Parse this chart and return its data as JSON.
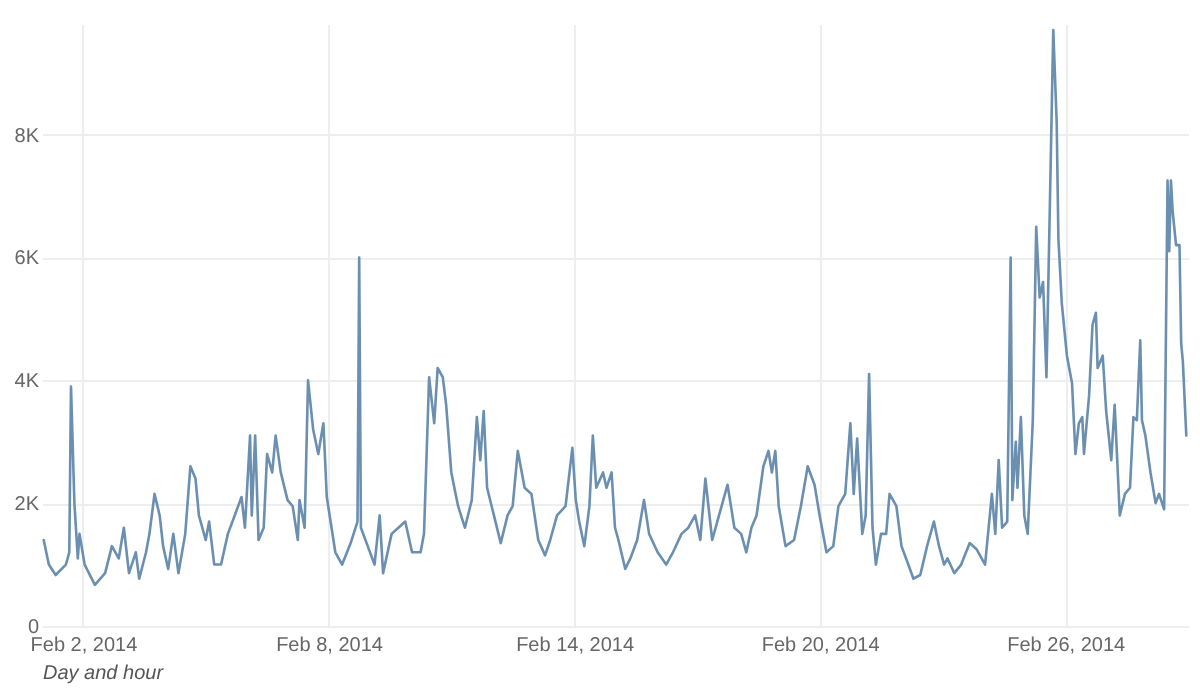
{
  "chart_data": {
    "type": "line",
    "xlabel": "Day and hour",
    "xlim": [
      "2014-02-01",
      "2014-03-01"
    ],
    "xticks": [
      {
        "value": "2014-02-02",
        "label": "Feb 2, 2014"
      },
      {
        "value": "2014-02-08",
        "label": "Feb 8, 2014"
      },
      {
        "value": "2014-02-14",
        "label": "Feb 14, 2014"
      },
      {
        "value": "2014-02-20",
        "label": "Feb 20, 2014"
      },
      {
        "value": "2014-02-26",
        "label": "Feb 26, 2014"
      }
    ],
    "ylim": [
      0,
      9800
    ],
    "yticks": [
      0,
      {
        "value": 2000,
        "label": "2K"
      },
      {
        "value": 4000,
        "label": "4K"
      },
      {
        "value": 6000,
        "label": "6K"
      },
      {
        "value": 8000,
        "label": "8K"
      }
    ],
    "grid": true,
    "marker": "none",
    "line_style": "solid",
    "x": [
      "2014-02-01T01:00",
      "2014-02-01T04:00",
      "2014-02-01T08:00",
      "2014-02-01T14:00",
      "2014-02-01T16:00",
      "2014-02-01T17:00",
      "2014-02-01T19:00",
      "2014-02-01T21:00",
      "2014-02-01T22:00",
      "2014-02-02T01:00",
      "2014-02-02T07:00",
      "2014-02-02T13:00",
      "2014-02-02T17:00",
      "2014-02-02T21:00",
      "2014-02-03T00:00",
      "2014-02-03T03:00",
      "2014-02-03T07:00",
      "2014-02-03T09:00",
      "2014-02-03T13:00",
      "2014-02-03T15:00",
      "2014-02-03T18:00",
      "2014-02-03T21:00",
      "2014-02-03T23:00",
      "2014-02-04T02:00",
      "2014-02-04T05:00",
      "2014-02-04T08:00",
      "2014-02-04T12:00",
      "2014-02-04T15:00",
      "2014-02-04T18:00",
      "2014-02-04T20:00",
      "2014-02-05T00:00",
      "2014-02-05T02:00",
      "2014-02-05T05:00",
      "2014-02-05T09:00",
      "2014-02-05T13:00",
      "2014-02-05T17:00",
      "2014-02-05T21:00",
      "2014-02-05T23:00",
      "2014-02-06T02:00",
      "2014-02-06T03:00",
      "2014-02-06T05:00",
      "2014-02-06T07:00",
      "2014-02-06T10:00",
      "2014-02-06T12:00",
      "2014-02-06T15:00",
      "2014-02-06T17:00",
      "2014-02-06T20:00",
      "2014-02-07T00:00",
      "2014-02-07T03:00",
      "2014-02-07T06:00",
      "2014-02-07T07:00",
      "2014-02-07T10:00",
      "2014-02-07T12:00",
      "2014-02-07T15:00",
      "2014-02-07T18:00",
      "2014-02-07T21:00",
      "2014-02-07T23:00",
      "2014-02-08T04:00",
      "2014-02-08T08:00",
      "2014-02-08T13:00",
      "2014-02-08T17:00",
      "2014-02-08T18:00",
      "2014-02-08T19:00",
      "2014-02-08T23:00",
      "2014-02-09T03:00",
      "2014-02-09T06:00",
      "2014-02-09T08:00",
      "2014-02-09T13:00",
      "2014-02-09T17:00",
      "2014-02-09T21:00",
      "2014-02-10T01:00",
      "2014-02-10T06:00",
      "2014-02-10T08:00",
      "2014-02-10T11:00",
      "2014-02-10T14:00",
      "2014-02-10T16:00",
      "2014-02-10T19:00",
      "2014-02-10T21:00",
      "2014-02-11T00:00",
      "2014-02-11T04:00",
      "2014-02-11T08:00",
      "2014-02-11T12:00",
      "2014-02-11T15:00",
      "2014-02-11T17:00",
      "2014-02-11T19:00",
      "2014-02-11T21:00",
      "2014-02-12T01:00",
      "2014-02-12T05:00",
      "2014-02-12T09:00",
      "2014-02-12T12:00",
      "2014-02-12T15:00",
      "2014-02-12T19:00",
      "2014-02-12T23:00",
      "2014-02-13T03:00",
      "2014-02-13T07:00",
      "2014-02-13T10:00",
      "2014-02-13T14:00",
      "2014-02-13T19:00",
      "2014-02-13T23:00",
      "2014-02-14T01:00",
      "2014-02-14T03:00",
      "2014-02-14T06:00",
      "2014-02-14T09:00",
      "2014-02-14T11:00",
      "2014-02-14T13:00",
      "2014-02-14T17:00",
      "2014-02-14T19:00",
      "2014-02-14T22:00",
      "2014-02-15T00:00",
      "2014-02-15T02:00",
      "2014-02-15T06:00",
      "2014-02-15T09:00",
      "2014-02-15T13:00",
      "2014-02-15T17:00",
      "2014-02-15T20:00",
      "2014-02-16T01:00",
      "2014-02-16T06:00",
      "2014-02-16T10:00",
      "2014-02-16T15:00",
      "2014-02-16T19:00",
      "2014-02-16T23:00",
      "2014-02-17T02:00",
      "2014-02-17T05:00",
      "2014-02-17T09:00",
      "2014-02-17T13:00",
      "2014-02-17T18:00",
      "2014-02-17T22:00",
      "2014-02-18T02:00",
      "2014-02-18T05:00",
      "2014-02-18T08:00",
      "2014-02-18T11:00",
      "2014-02-18T15:00",
      "2014-02-18T18:00",
      "2014-02-18T20:00",
      "2014-02-18T22:00",
      "2014-02-19T00:00",
      "2014-02-19T04:00",
      "2014-02-19T09:00",
      "2014-02-19T13:00",
      "2014-02-19T17:00",
      "2014-02-19T21:00",
      "2014-02-20T00:00",
      "2014-02-20T04:00",
      "2014-02-20T08:00",
      "2014-02-20T11:00",
      "2014-02-20T15:00",
      "2014-02-20T18:00",
      "2014-02-20T20:00",
      "2014-02-20T22:00",
      "2014-02-21T01:00",
      "2014-02-21T03:00",
      "2014-02-21T05:00",
      "2014-02-21T07:00",
      "2014-02-21T09:00",
      "2014-02-21T12:00",
      "2014-02-21T15:00",
      "2014-02-21T17:00",
      "2014-02-21T21:00",
      "2014-02-22T00:00",
      "2014-02-22T04:00",
      "2014-02-22T07:00",
      "2014-02-22T11:00",
      "2014-02-22T15:00",
      "2014-02-22T19:00",
      "2014-02-22T22:00",
      "2014-02-23T01:00",
      "2014-02-23T03:00",
      "2014-02-23T07:00",
      "2014-02-23T11:00",
      "2014-02-23T16:00",
      "2014-02-23T20:00",
      "2014-02-24T01:00",
      "2014-02-24T05:00",
      "2014-02-24T07:00",
      "2014-02-24T09:00",
      "2014-02-24T11:00",
      "2014-02-24T14:00",
      "2014-02-24T16:00",
      "2014-02-24T17:00",
      "2014-02-24T19:00",
      "2014-02-24T20:00",
      "2014-02-24T22:00",
      "2014-02-25T00:00",
      "2014-02-25T02:00",
      "2014-02-25T05:00",
      "2014-02-25T07:00",
      "2014-02-25T09:00",
      "2014-02-25T11:00",
      "2014-02-25T13:00",
      "2014-02-25T15:00",
      "2014-02-25T17:00",
      "2014-02-25T19:00",
      "2014-02-25T20:00",
      "2014-02-25T22:00",
      "2014-02-26T01:00",
      "2014-02-26T04:00",
      "2014-02-26T06:00",
      "2014-02-26T08:00",
      "2014-02-26T10:00",
      "2014-02-26T11:00",
      "2014-02-26T14:00",
      "2014-02-26T16:00",
      "2014-02-26T18:00",
      "2014-02-26T19:00",
      "2014-02-26T22:00",
      "2014-02-27T00:00",
      "2014-02-27T03:00",
      "2014-02-27T05:00",
      "2014-02-27T08:00",
      "2014-02-27T11:00",
      "2014-02-27T14:00",
      "2014-02-27T16:00",
      "2014-02-27T18:00",
      "2014-02-27T20:00",
      "2014-02-27T21:00",
      "2014-02-27T23:00",
      "2014-02-28T02:00",
      "2014-02-28T05:00",
      "2014-02-28T07:00",
      "2014-02-28T10:00",
      "2014-02-28T12:00",
      "2014-02-28T13:00",
      "2014-02-28T14:00",
      "2014-02-28T15:00",
      "2014-02-28T17:00",
      "2014-02-28T19:00",
      "2014-02-28T20:00",
      "2014-02-28T21:00",
      "2014-02-28T23:00"
    ],
    "series": [
      {
        "color": "#6a8fb0",
        "values": [
          1400,
          1000,
          830,
          1000,
          1200,
          3900,
          2000,
          1100,
          1500,
          1000,
          670,
          860,
          1300,
          1100,
          1600,
          860,
          1200,
          770,
          1200,
          1500,
          2150,
          1800,
          1300,
          930,
          1500,
          860,
          1500,
          2600,
          2400,
          1800,
          1400,
          1700,
          1000,
          1000,
          1500,
          1800,
          2100,
          1600,
          3100,
          1800,
          3100,
          1400,
          1600,
          2800,
          2500,
          3100,
          2500,
          2050,
          1950,
          1400,
          2050,
          1600,
          4000,
          3200,
          2800,
          3300,
          2100,
          1200,
          1000,
          1350,
          1700,
          6000,
          1600,
          1300,
          1000,
          1800,
          860,
          1500,
          1600,
          1700,
          1200,
          1200,
          1500,
          4050,
          3300,
          4200,
          4050,
          3600,
          2500,
          1950,
          1600,
          2050,
          3400,
          2700,
          3500,
          2250,
          1800,
          1350,
          1800,
          1950,
          2850,
          2250,
          2150,
          1400,
          1150,
          1400,
          1800,
          1950,
          2900,
          2050,
          1700,
          1300,
          1950,
          3100,
          2250,
          2500,
          2250,
          2500,
          1600,
          1400,
          930,
          1100,
          1400,
          2050,
          1500,
          1200,
          1000,
          1200,
          1500,
          1600,
          1800,
          1400,
          2400,
          1400,
          1800,
          2300,
          1600,
          1500,
          1200,
          1600,
          1800,
          2600,
          2850,
          2500,
          2850,
          1950,
          1300,
          1400,
          1950,
          2600,
          2300,
          1800,
          1200,
          1300,
          1950,
          2150,
          3300,
          2150,
          3050,
          1500,
          1800,
          4100,
          1600,
          1000,
          1500,
          1500,
          2150,
          1950,
          1300,
          1000,
          770,
          830,
          1300,
          1700,
          1300,
          1000,
          1100,
          860,
          1000,
          1350,
          1250,
          1000,
          2150,
          1500,
          2700,
          1600,
          1700,
          6000,
          2050,
          3000,
          2250,
          3400,
          1800,
          1500,
          3350,
          6500,
          5350,
          5600,
          4050,
          6850,
          9700,
          8200,
          6300,
          5250,
          4400,
          3950,
          2800,
          3300,
          3400,
          2800,
          3750,
          4900,
          5100,
          4200,
          4400,
          3500,
          2700,
          3600,
          1800,
          2150,
          2250,
          3400,
          3350,
          4650,
          3350,
          3100,
          2500,
          2000,
          2150,
          1900,
          7250,
          6100,
          7250,
          6750,
          6200,
          6200,
          4600,
          4300,
          3100
        ]
      }
    ]
  }
}
